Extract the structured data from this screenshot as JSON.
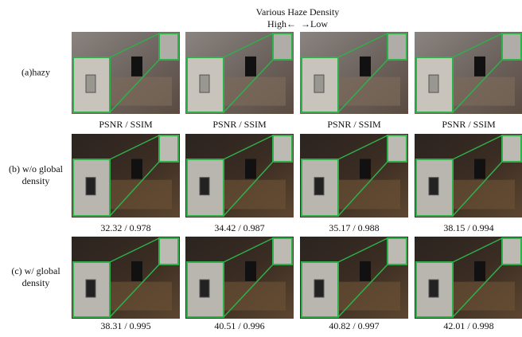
{
  "header": {
    "title": "Various Haze Density",
    "left": "High←",
    "right": "→Low"
  },
  "rows": [
    {
      "label": [
        "(a)hazy"
      ],
      "captions": [
        "PSNR / SSIM",
        "PSNR / SSIM",
        "PSNR / SSIM",
        "PSNR / SSIM"
      ]
    },
    {
      "label": [
        "(b) w/o global",
        "density"
      ],
      "captions": [
        "32.32 / 0.978",
        "34.42 / 0.987",
        "35.17 / 0.988",
        "38.15 / 0.994"
      ]
    },
    {
      "label": [
        "(c) w/ global",
        "density"
      ],
      "captions": [
        "38.31 / 0.995",
        "40.51 / 0.996",
        "40.82 / 0.997",
        "42.01 / 0.998"
      ]
    }
  ]
}
